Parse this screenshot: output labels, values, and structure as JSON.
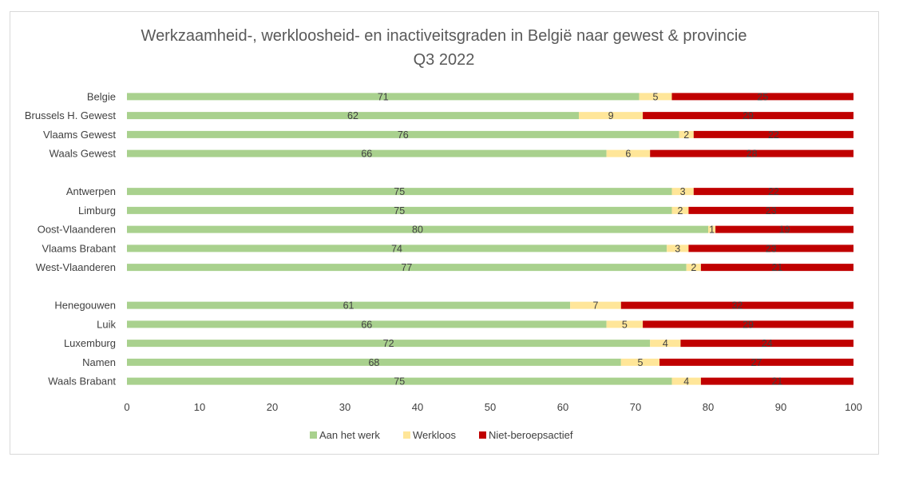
{
  "chart_data": {
    "type": "bar",
    "orientation": "horizontal",
    "stacked": true,
    "title": "Werkzaamheid-, werkloosheid- en inactiveitsgraden in België naar gewest & provincie",
    "subtitle": "Q3 2022",
    "xlim": [
      0,
      100
    ],
    "xticks": [
      0,
      10,
      20,
      30,
      40,
      50,
      60,
      70,
      80,
      90,
      100
    ],
    "grid": false,
    "legend_position": "bottom",
    "categories": [
      "Belgie",
      "Brussels H. Gewest",
      "Vlaams Gewest",
      "Waals Gewest",
      "",
      "Antwerpen",
      "Limburg",
      "Oost-Vlaanderen",
      "Vlaams Brabant",
      "West-Vlaanderen",
      "",
      "Henegouwen",
      "Luik",
      "Luxemburg",
      "Namen",
      "Waals Brabant"
    ],
    "series": [
      {
        "name": "Aan het werk",
        "color": "#a9d18e",
        "values": [
          70.5,
          62.2,
          76.0,
          66.0,
          null,
          75.0,
          75.0,
          80.0,
          74.3,
          77.0,
          null,
          61.0,
          66.0,
          72.0,
          68.0,
          75.0
        ],
        "labels": [
          "71",
          "62",
          "76",
          "66",
          "",
          "75",
          "75",
          "80",
          "74",
          "77",
          "",
          "61",
          "66",
          "72",
          "68",
          "75"
        ]
      },
      {
        "name": "Werkloos",
        "color": "#ffe699",
        "values": [
          4.5,
          8.8,
          2.0,
          6.0,
          null,
          3.0,
          2.3,
          1.0,
          3.0,
          2.0,
          null,
          7.0,
          5.0,
          4.2,
          5.3,
          4.0
        ],
        "labels": [
          "5",
          "9",
          "2",
          "6",
          "",
          "3",
          "2",
          "1",
          "3",
          "2",
          "",
          "7",
          "5",
          "4",
          "5",
          "4"
        ]
      },
      {
        "name": "Niet-beroepsactief",
        "color": "#c00000",
        "values": [
          25.0,
          29.0,
          22.0,
          28.0,
          null,
          22.0,
          22.7,
          19.0,
          22.7,
          21.0,
          null,
          32.0,
          29.0,
          23.8,
          26.7,
          21.0
        ],
        "labels": [
          "25",
          "29",
          "22",
          "28",
          "",
          "22",
          "23",
          "19",
          "23",
          "21",
          "",
          "32",
          "29",
          "24",
          "27",
          "21"
        ]
      }
    ]
  }
}
